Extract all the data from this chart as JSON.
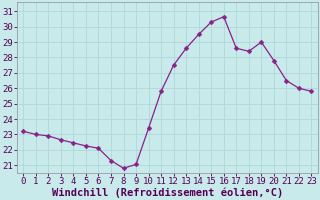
{
  "x": [
    0,
    1,
    2,
    3,
    4,
    5,
    6,
    7,
    8,
    9,
    10,
    11,
    12,
    13,
    14,
    15,
    16,
    17,
    18,
    19,
    20,
    21,
    22,
    23
  ],
  "y": [
    23.2,
    23.0,
    22.9,
    22.65,
    22.45,
    22.25,
    22.1,
    21.3,
    20.8,
    21.05,
    23.4,
    25.8,
    27.5,
    28.6,
    29.5,
    30.3,
    30.65,
    28.6,
    28.4,
    29.0,
    27.8,
    26.5,
    26.0,
    25.8
  ],
  "line_color": "#882288",
  "marker": "D",
  "marker_size": 2.5,
  "bg_color": "#c8eaea",
  "grid_color": "#b0d8d8",
  "xlabel": "Windchill (Refroidissement éolien,°C)",
  "xlabel_fontsize": 7.5,
  "ylabel_ticks": [
    21,
    22,
    23,
    24,
    25,
    26,
    27,
    28,
    29,
    30,
    31
  ],
  "xlim": [
    -0.5,
    23.5
  ],
  "ylim": [
    20.5,
    31.6
  ],
  "tick_fontsize": 6.5,
  "tick_color": "#550055",
  "label_color": "#550055",
  "spine_color": "#9999aa"
}
